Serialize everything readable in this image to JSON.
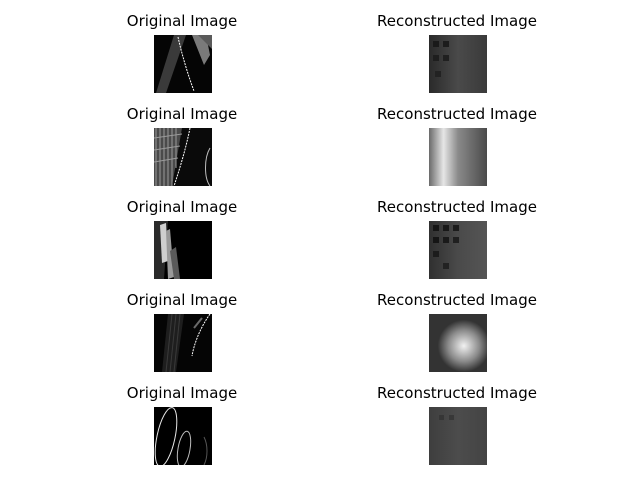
{
  "rows": [
    {
      "original": {
        "title": "Original Image",
        "content": "grayscale patch with bright diagonal streak and thin dotted curve"
      },
      "reconstructed": {
        "title": "Reconstructed Image",
        "content": "dark gray blurry patch with blocky artifacts"
      }
    },
    {
      "original": {
        "title": "Original Image",
        "content": "grayscale patch with hatched texture and thin curve"
      },
      "reconstructed": {
        "title": "Reconstructed Image",
        "content": "bright vertical blurry band on gray"
      }
    },
    {
      "original": {
        "title": "Original Image",
        "content": "mostly black patch with bright diagonal bars on left"
      },
      "reconstructed": {
        "title": "Reconstructed Image",
        "content": "dark gray blurry patch with blocky artifacts"
      }
    },
    {
      "original": {
        "title": "Original Image",
        "content": "dark patch with faint stripes and thin curved line"
      },
      "reconstructed": {
        "title": "Reconstructed Image",
        "content": "bright blurry blob center-right on gray"
      }
    },
    {
      "original": {
        "title": "Original Image",
        "content": "black patch with two thin elliptical curves"
      },
      "reconstructed": {
        "title": "Reconstructed Image",
        "content": "uniform dark gray blurry patch"
      }
    }
  ]
}
